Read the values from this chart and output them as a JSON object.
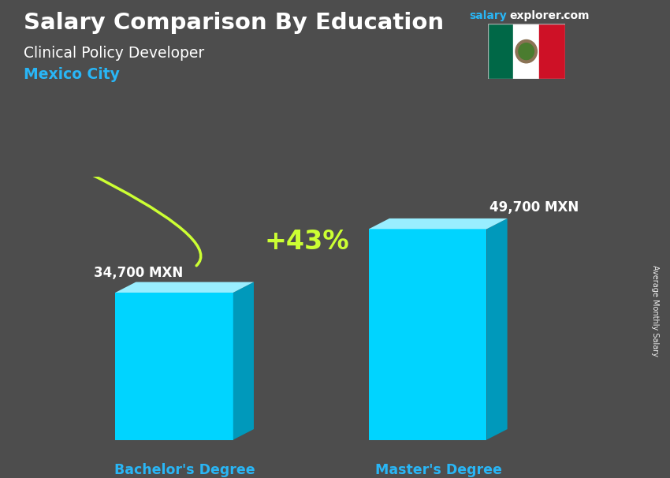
{
  "title_main": "Salary Comparison By Education",
  "subtitle": "Clinical Policy Developer",
  "location": "Mexico City",
  "categories": [
    "Bachelor's Degree",
    "Master's Degree"
  ],
  "values": [
    34700,
    49700
  ],
  "value_labels": [
    "34,700 MXN",
    "49,700 MXN"
  ],
  "pct_change": "+43%",
  "bar_color_front": "#00D4FF",
  "bar_color_top": "#99EEFF",
  "bar_color_side": "#0099BB",
  "ylabel_rotated": "Average Monthly Salary",
  "title_color": "#FFFFFF",
  "subtitle_color": "#FFFFFF",
  "location_color": "#29B6F6",
  "value_color": "#FFFFFF",
  "pct_color": "#CCFF33",
  "xlabel_color": "#29B6F6",
  "flag_green": "#006847",
  "flag_white": "#FFFFFF",
  "flag_red": "#CE1126",
  "salary_color": "#29B6F6",
  "explorer_color": "#FFFFFF",
  "dotcom_color": "#FFFFFF",
  "bg_color": [
    0.3,
    0.3,
    0.3
  ]
}
